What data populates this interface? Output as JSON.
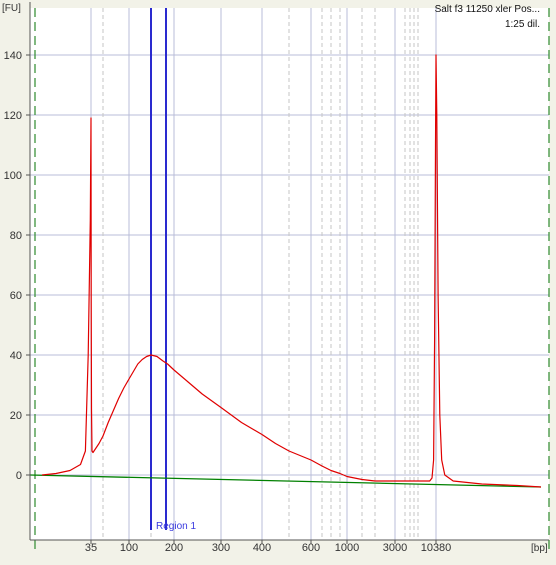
{
  "chart_data": {
    "type": "line",
    "sample_name": "Salt f3 11250 xler Pos...",
    "sample_subtitle": "1:25 dil.",
    "y_unit_label": "[FU]",
    "x_unit_label": "[bp]",
    "ylim": [
      -18,
      155
    ],
    "y_ticks": [
      0,
      20,
      40,
      60,
      80,
      100,
      120,
      140
    ],
    "x_ticks": [
      35,
      100,
      200,
      300,
      400,
      600,
      1000,
      3000,
      10380
    ],
    "x_tick_labels": [
      "35",
      "100",
      "200",
      "300",
      "400",
      "600",
      "1000",
      "3000",
      "10380"
    ],
    "x_minor_ticks": [
      50,
      150,
      500,
      700,
      800,
      900,
      1500,
      2000,
      4000,
      5000,
      6000,
      7000
    ],
    "grid": true,
    "region": {
      "label": "Region 1",
      "start_bp": 150,
      "end_bp": 175
    },
    "baseline": {
      "name": "baseline",
      "color": "#008000",
      "start_fu": 0,
      "end_fu": -4
    },
    "series": [
      {
        "color": "#e00000",
        "points": [
          [
            28,
            0
          ],
          [
            30,
            0.5
          ],
          [
            32,
            1.5
          ],
          [
            33.5,
            3.5
          ],
          [
            34.2,
            8
          ],
          [
            34.6,
            40
          ],
          [
            34.9,
            85
          ],
          [
            35,
            119
          ],
          [
            35.2,
            60
          ],
          [
            35.6,
            22
          ],
          [
            36.2,
            8
          ],
          [
            37.5,
            7.5
          ],
          [
            40,
            8.5
          ],
          [
            45,
            10.5
          ],
          [
            50,
            13
          ],
          [
            60,
            17.5
          ],
          [
            70,
            21.5
          ],
          [
            80,
            25.5
          ],
          [
            90,
            29
          ],
          [
            100,
            32
          ],
          [
            110,
            34.5
          ],
          [
            120,
            37
          ],
          [
            130,
            38.5
          ],
          [
            140,
            39.5
          ],
          [
            150,
            40
          ],
          [
            160,
            39.5
          ],
          [
            170,
            38
          ],
          [
            180,
            37
          ],
          [
            200,
            35
          ],
          [
            230,
            31
          ],
          [
            260,
            27
          ],
          [
            300,
            22.5
          ],
          [
            350,
            17.5
          ],
          [
            400,
            13.5
          ],
          [
            450,
            10.5
          ],
          [
            500,
            8
          ],
          [
            600,
            5
          ],
          [
            700,
            3
          ],
          [
            800,
            1.5
          ],
          [
            900,
            0.5
          ],
          [
            1000,
            -0.5
          ],
          [
            1500,
            -1.5
          ],
          [
            2000,
            -2
          ],
          [
            3000,
            -2
          ],
          [
            5000,
            -2
          ],
          [
            8000,
            -2
          ],
          [
            9500,
            -2
          ],
          [
            10000,
            -1
          ],
          [
            10150,
            5
          ],
          [
            10250,
            45
          ],
          [
            10330,
            110
          ],
          [
            10380,
            140
          ],
          [
            10420,
            120
          ],
          [
            10480,
            60
          ],
          [
            10560,
            20
          ],
          [
            10650,
            5
          ],
          [
            10800,
            0
          ],
          [
            11200,
            -2
          ],
          [
            12500,
            -3
          ],
          [
            14000,
            -3.5
          ],
          [
            15000,
            -4
          ]
        ]
      }
    ]
  }
}
